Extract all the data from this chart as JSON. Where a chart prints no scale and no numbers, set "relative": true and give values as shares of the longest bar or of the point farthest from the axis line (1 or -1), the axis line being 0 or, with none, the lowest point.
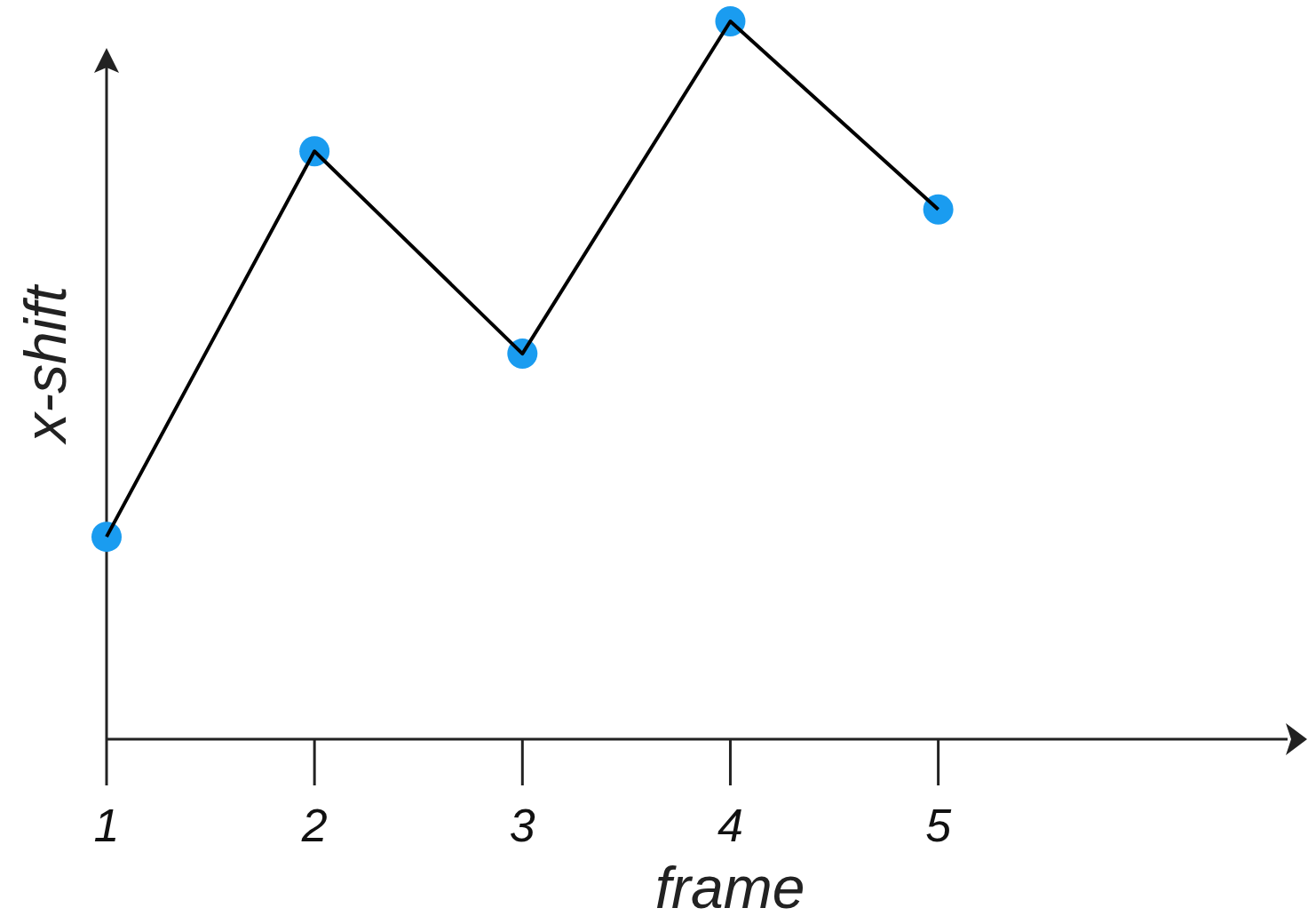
{
  "chart_data": {
    "type": "line",
    "relative": true,
    "xlabel": "frame",
    "ylabel": "x-shift",
    "x": [
      1,
      2,
      3,
      4,
      5
    ],
    "xlim": [
      1,
      6.68
    ],
    "xticks": [
      1,
      2,
      3,
      4,
      5
    ],
    "grid": false,
    "legend": false,
    "series": [
      {
        "color": "#000000",
        "marker": "none",
        "values": [
          0.282,
          0.819,
          0.537,
          1,
          0.738
        ]
      },
      {
        "type": "scatter",
        "color": "#1a9cf0",
        "marker": "circle",
        "values": [
          0.282,
          0.819,
          0.537,
          1,
          0.738
        ]
      }
    ]
  }
}
